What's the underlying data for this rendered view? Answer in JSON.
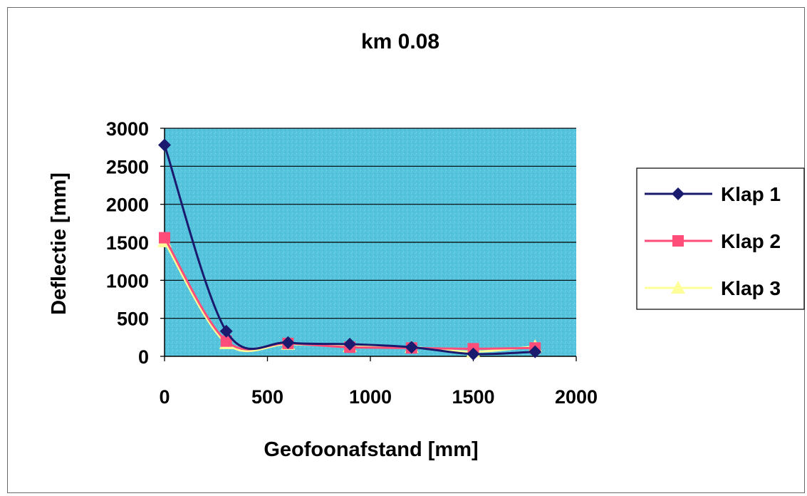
{
  "chart_data": {
    "type": "line",
    "title": "km 0.08",
    "xlabel": "Geofoonafstand [mm]",
    "ylabel": "Deflectie [mm]",
    "xlim": [
      0,
      2000
    ],
    "ylim": [
      0,
      3000
    ],
    "x_ticks": [
      0,
      500,
      1000,
      1500,
      2000
    ],
    "y_ticks": [
      0,
      500,
      1000,
      1500,
      2000,
      2500,
      3000
    ],
    "grid": "horizontal",
    "legend_position": "right",
    "plot_background": "#55c3dc",
    "series": [
      {
        "name": "Klap 1",
        "color": "#1a1a6e",
        "marker": "diamond",
        "x": [
          0,
          300,
          600,
          900,
          1200,
          1500,
          1800
        ],
        "y": [
          2780,
          330,
          180,
          160,
          120,
          30,
          60
        ]
      },
      {
        "name": "Klap 2",
        "color": "#ff4d7a",
        "marker": "square",
        "x": [
          0,
          300,
          600,
          900,
          1200,
          1500,
          1800
        ],
        "y": [
          1560,
          200,
          170,
          120,
          110,
          100,
          110
        ]
      },
      {
        "name": "Klap 3",
        "color": "#ffff99",
        "marker": "triangle",
        "x": [
          0,
          300,
          600,
          900,
          1200,
          1500,
          1800
        ],
        "y": [
          1510,
          170,
          160,
          130,
          120,
          60,
          130
        ]
      }
    ]
  }
}
